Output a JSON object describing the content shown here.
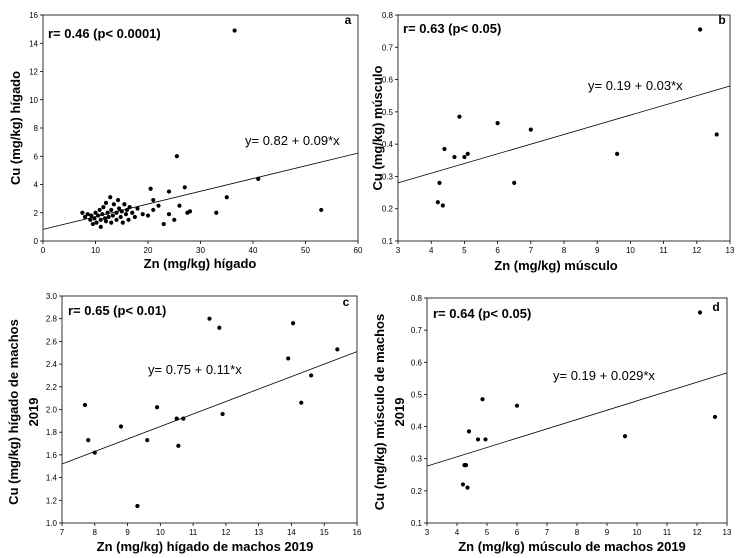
{
  "chart_data": [
    {
      "type": "scatter",
      "panel_label": "a",
      "correlation": "r= 0.46 (p< 0.0001)",
      "equation": "y= 0.82 + 0.09*x",
      "xlabel": "Zn (mg/kg) hígado",
      "ylabel": [
        "Cu (mg/kg) hígado"
      ],
      "xlim": [
        0,
        60
      ],
      "ylim": [
        0,
        16
      ],
      "xticks": [
        0,
        10,
        20,
        30,
        40,
        50,
        60
      ],
      "yticks": [
        0,
        2,
        4,
        6,
        8,
        10,
        12,
        14,
        16
      ],
      "regression": {
        "intercept": 0.82,
        "slope": 0.09
      },
      "points": [
        [
          7.5,
          2.0
        ],
        [
          8,
          1.7
        ],
        [
          8.5,
          1.9
        ],
        [
          9,
          1.5
        ],
        [
          9.2,
          1.8
        ],
        [
          9.5,
          1.2
        ],
        [
          9.8,
          1.6
        ],
        [
          10,
          2.0
        ],
        [
          10.2,
          1.3
        ],
        [
          10.5,
          1.8
        ],
        [
          10.8,
          2.2
        ],
        [
          11,
          1.5
        ],
        [
          11,
          1.0
        ],
        [
          11.3,
          1.9
        ],
        [
          11.5,
          2.4
        ],
        [
          11.8,
          1.6
        ],
        [
          12,
          2.7
        ],
        [
          12,
          1.4
        ],
        [
          12.3,
          2.0
        ],
        [
          12.5,
          1.7
        ],
        [
          12.8,
          3.1
        ],
        [
          13,
          2.2
        ],
        [
          13,
          1.3
        ],
        [
          13.3,
          1.8
        ],
        [
          13.5,
          2.6
        ],
        [
          14,
          2.0
        ],
        [
          14,
          1.5
        ],
        [
          14.3,
          2.9
        ],
        [
          14.5,
          2.3
        ],
        [
          14.8,
          1.7
        ],
        [
          15,
          2.1
        ],
        [
          15.2,
          1.3
        ],
        [
          15.5,
          2.6
        ],
        [
          15.8,
          1.9
        ],
        [
          16,
          2.2
        ],
        [
          16.3,
          1.5
        ],
        [
          16.5,
          2.4
        ],
        [
          17,
          2.0
        ],
        [
          17.5,
          1.7
        ],
        [
          18,
          2.3
        ],
        [
          19,
          1.9
        ],
        [
          20,
          1.8
        ],
        [
          20.5,
          3.7
        ],
        [
          21,
          2.2
        ],
        [
          21,
          2.9
        ],
        [
          22,
          2.5
        ],
        [
          23,
          1.2
        ],
        [
          24,
          1.9
        ],
        [
          24,
          3.5
        ],
        [
          25,
          1.5
        ],
        [
          25.5,
          6.0
        ],
        [
          26,
          2.5
        ],
        [
          27,
          3.8
        ],
        [
          27.5,
          2.0
        ],
        [
          28,
          2.1
        ],
        [
          33,
          2.0
        ],
        [
          35,
          3.1
        ],
        [
          36.5,
          14.9
        ],
        [
          41,
          4.4
        ],
        [
          53,
          2.2
        ]
      ]
    },
    {
      "type": "scatter",
      "panel_label": "b",
      "correlation": "r= 0.63 (p< 0.05)",
      "equation": "y= 0.19 + 0.03*x",
      "xlabel": "Zn (mg/kg) músculo",
      "ylabel": [
        "Cu (mg/kg) músculo"
      ],
      "xlim": [
        3,
        13
      ],
      "ylim": [
        0.1,
        0.8
      ],
      "xticks": [
        3,
        4,
        5,
        6,
        7,
        8,
        9,
        10,
        11,
        12,
        13
      ],
      "yticks": [
        0.1,
        0.2,
        0.3,
        0.4,
        0.5,
        0.6,
        0.7,
        0.8
      ],
      "regression": {
        "intercept": 0.19,
        "slope": 0.03
      },
      "points": [
        [
          4.2,
          0.22
        ],
        [
          4.25,
          0.28
        ],
        [
          4.35,
          0.21
        ],
        [
          4.4,
          0.385
        ],
        [
          4.7,
          0.36
        ],
        [
          4.85,
          0.485
        ],
        [
          5.0,
          0.36
        ],
        [
          5.1,
          0.37
        ],
        [
          6.0,
          0.465
        ],
        [
          6.5,
          0.28
        ],
        [
          7.0,
          0.445
        ],
        [
          9.6,
          0.37
        ],
        [
          12.1,
          0.755
        ],
        [
          12.6,
          0.43
        ]
      ]
    },
    {
      "type": "scatter",
      "panel_label": "c",
      "correlation": "r= 0.65 (p< 0.01)",
      "equation": "y= 0.75 + 0.11*x",
      "xlabel": "Zn (mg/kg) hígado de machos 2019",
      "ylabel": [
        "Cu (mg/kg) hígado de machos",
        "2019"
      ],
      "xlim": [
        7,
        16
      ],
      "ylim": [
        1.0,
        3.0
      ],
      "xticks": [
        7,
        8,
        9,
        10,
        11,
        12,
        13,
        14,
        15,
        16
      ],
      "yticks": [
        1.0,
        1.2,
        1.4,
        1.6,
        1.8,
        2.0,
        2.2,
        2.4,
        2.6,
        2.8,
        3.0
      ],
      "regression": {
        "intercept": 0.75,
        "slope": 0.11
      },
      "points": [
        [
          7.7,
          2.04
        ],
        [
          7.8,
          1.73
        ],
        [
          8.0,
          1.62
        ],
        [
          8.8,
          1.85
        ],
        [
          9.3,
          1.15
        ],
        [
          9.6,
          1.73
        ],
        [
          9.9,
          2.02
        ],
        [
          10.5,
          1.92
        ],
        [
          10.55,
          1.68
        ],
        [
          10.7,
          1.92
        ],
        [
          11.5,
          2.8
        ],
        [
          11.8,
          2.72
        ],
        [
          11.9,
          1.96
        ],
        [
          13.9,
          2.45
        ],
        [
          14.05,
          2.76
        ],
        [
          14.3,
          2.06
        ],
        [
          14.6,
          2.3
        ],
        [
          15.4,
          2.53
        ]
      ]
    },
    {
      "type": "scatter",
      "panel_label": "d",
      "correlation": "r= 0.64 (p< 0.05)",
      "equation": "y= 0.19 + 0.029*x",
      "xlabel": "Zn (mg/kg) músculo de machos 2019",
      "ylabel": [
        "Cu (mg/kg) músculo de machos",
        "2019"
      ],
      "xlim": [
        3,
        13
      ],
      "ylim": [
        0.1,
        0.8
      ],
      "xticks": [
        3,
        4,
        5,
        6,
        7,
        8,
        9,
        10,
        11,
        12,
        13
      ],
      "yticks": [
        0.1,
        0.2,
        0.3,
        0.4,
        0.5,
        0.6,
        0.7,
        0.8
      ],
      "regression": {
        "intercept": 0.19,
        "slope": 0.029
      },
      "points": [
        [
          4.2,
          0.22
        ],
        [
          4.25,
          0.28
        ],
        [
          4.3,
          0.28
        ],
        [
          4.35,
          0.21
        ],
        [
          4.4,
          0.385
        ],
        [
          4.7,
          0.36
        ],
        [
          4.85,
          0.485
        ],
        [
          4.95,
          0.36
        ],
        [
          6.0,
          0.465
        ],
        [
          9.6,
          0.37
        ],
        [
          12.1,
          0.755
        ],
        [
          12.6,
          0.43
        ]
      ]
    }
  ]
}
